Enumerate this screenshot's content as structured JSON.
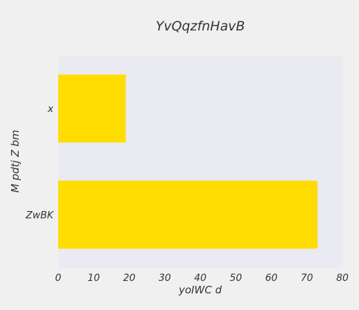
{
  "chart_data": {
    "type": "bar",
    "orientation": "horizontal",
    "title": "YvQqzfnHavB",
    "xlabel": "yoIWC d",
    "ylabel": "M pdtj Z bm",
    "categories": [
      "x",
      "ZwBK"
    ],
    "values": [
      19,
      73
    ],
    "xlim": [
      0,
      80
    ],
    "xticks": [
      0,
      10,
      20,
      30,
      40,
      50,
      60,
      70,
      80
    ],
    "grid": false,
    "legend": "none"
  },
  "colors": {
    "page_background": "#f0f0f0",
    "plot_background": "#eaeaf2",
    "bar": "#ffdd00",
    "text": "#333333"
  }
}
